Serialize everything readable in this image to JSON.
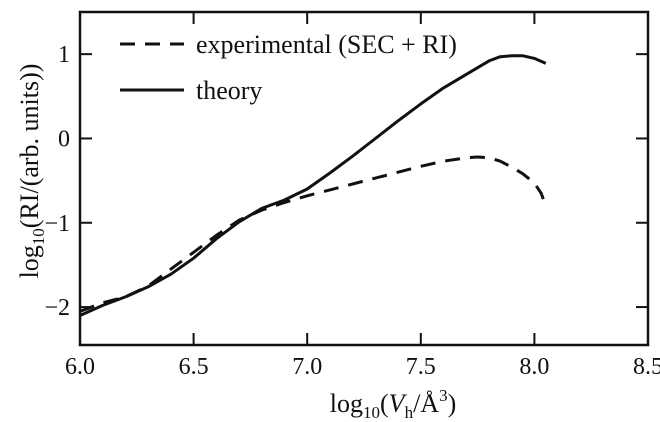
{
  "chart_data": {
    "type": "line",
    "title": "",
    "xlabel": {
      "prefix": "log",
      "sub": "10",
      "open": "(",
      "var": "V",
      "var_sub": "h",
      "slash_unit": "/Å",
      "sup": "3",
      "close": ")"
    },
    "ylabel": {
      "prefix": "log",
      "sub": "10",
      "rest": "(RI/(arb. units))"
    },
    "xlim": [
      6.0,
      8.5
    ],
    "ylim": [
      -2.45,
      1.5
    ],
    "xticks": [
      6.0,
      6.5,
      7.0,
      7.5,
      8.0,
      8.5
    ],
    "xtick_labels": [
      "6.0",
      "6.5",
      "7.0",
      "7.5",
      "8.0",
      "8.5"
    ],
    "yticks": [
      -2,
      -1,
      0,
      1
    ],
    "ytick_labels": [
      "−2",
      "−1",
      "0",
      "1"
    ],
    "grid": false,
    "legend_position": "top-left",
    "series": [
      {
        "name": "experimental (SEC + RI)",
        "style": "dashed",
        "color": "#111111",
        "x": [
          6.0,
          6.1,
          6.2,
          6.3,
          6.4,
          6.5,
          6.6,
          6.7,
          6.8,
          6.9,
          7.0,
          7.1,
          7.2,
          7.3,
          7.4,
          7.5,
          7.6,
          7.7,
          7.75,
          7.8,
          7.85,
          7.9,
          7.95,
          8.0,
          8.03,
          8.05
        ],
        "y": [
          -2.05,
          -1.95,
          -1.88,
          -1.75,
          -1.55,
          -1.35,
          -1.15,
          -0.97,
          -0.85,
          -0.76,
          -0.68,
          -0.61,
          -0.54,
          -0.47,
          -0.4,
          -0.33,
          -0.27,
          -0.23,
          -0.22,
          -0.23,
          -0.27,
          -0.34,
          -0.42,
          -0.53,
          -0.65,
          -0.8
        ]
      },
      {
        "name": "theory",
        "style": "solid",
        "color": "#111111",
        "x": [
          6.0,
          6.1,
          6.2,
          6.3,
          6.4,
          6.5,
          6.6,
          6.7,
          6.8,
          6.9,
          7.0,
          7.1,
          7.2,
          7.3,
          7.4,
          7.5,
          7.6,
          7.7,
          7.8,
          7.85,
          7.9,
          7.95,
          8.0,
          8.05
        ],
        "y": [
          -2.1,
          -1.98,
          -1.88,
          -1.76,
          -1.61,
          -1.42,
          -1.19,
          -0.99,
          -0.83,
          -0.73,
          -0.6,
          -0.41,
          -0.21,
          0.0,
          0.21,
          0.41,
          0.6,
          0.76,
          0.92,
          0.97,
          0.98,
          0.98,
          0.95,
          0.89
        ]
      }
    ]
  }
}
